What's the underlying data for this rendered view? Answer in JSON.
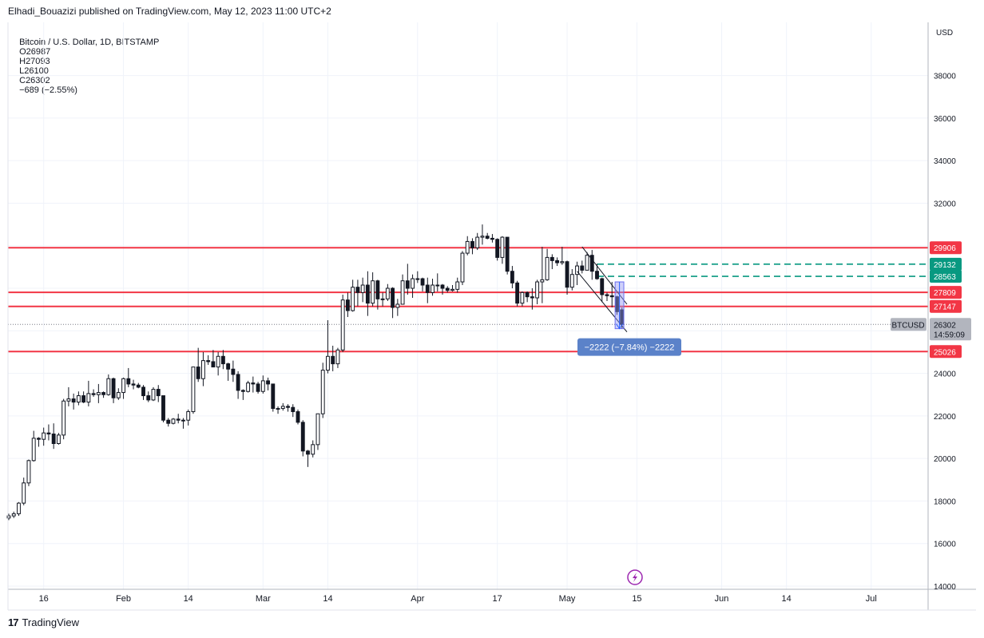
{
  "header": {
    "author": "Elhadi_Bouazizi",
    "published": "published on TradingView.com, May 12, 2023 11:00 UTC+2"
  },
  "symbol": {
    "name": "Bitcoin / U.S. Dollar, 1D, BITSTAMP",
    "open": "O26987",
    "high": "H27093",
    "low": "L26100",
    "close": "C26302",
    "change": "−689 (−2.55%)"
  },
  "footer": {
    "brand": "TradingView"
  },
  "colors": {
    "resistance": "#f23645",
    "target_dashed": "#089981",
    "measure_fill": "#9598f5",
    "measure_badge": "#5b82c9",
    "grid": "#f0f3fa",
    "candle": "#131722"
  },
  "chart_data": {
    "type": "candlestick",
    "currency_label": "USD",
    "y_ticks": [
      14000,
      16000,
      18000,
      20000,
      22000,
      24000,
      26000,
      28000,
      30000,
      32000,
      34000,
      36000,
      38000
    ],
    "y_tick_labels": [
      "14000",
      "16000",
      "18000",
      "20000",
      "22000",
      "24000",
      "",
      "",
      "",
      "32000",
      "34000",
      "36000",
      "38000"
    ],
    "ylim": [
      13850,
      40500
    ],
    "x_axis": {
      "start": "2023-01-09",
      "end": "2023-07-06"
    },
    "x_ticks": [
      {
        "date": "2023-01-16",
        "label": "16"
      },
      {
        "date": "2023-02-01",
        "label": "Feb"
      },
      {
        "date": "2023-02-14",
        "label": "14"
      },
      {
        "date": "2023-03-01",
        "label": "Mar"
      },
      {
        "date": "2023-03-14",
        "label": "14"
      },
      {
        "date": "2023-04-01",
        "label": "Apr"
      },
      {
        "date": "2023-04-17",
        "label": "17"
      },
      {
        "date": "2023-05-01",
        "label": "May"
      },
      {
        "date": "2023-05-15",
        "label": "15"
      },
      {
        "date": "2023-06-01",
        "label": "Jun"
      },
      {
        "date": "2023-06-14",
        "label": "14"
      },
      {
        "date": "2023-07-01",
        "label": "Jul"
      }
    ],
    "candles": [
      {
        "date": "2023-01-09",
        "o": 17200,
        "h": 17400,
        "l": 17100,
        "c": 17300
      },
      {
        "date": "2023-01-10",
        "o": 17300,
        "h": 17500,
        "l": 17200,
        "c": 17400
      },
      {
        "date": "2023-01-11",
        "o": 17400,
        "h": 17950,
        "l": 17300,
        "c": 17900
      },
      {
        "date": "2023-01-12",
        "o": 17900,
        "h": 19100,
        "l": 17800,
        "c": 18850
      },
      {
        "date": "2023-01-13",
        "o": 18850,
        "h": 19950,
        "l": 18700,
        "c": 19900
      },
      {
        "date": "2023-01-14",
        "o": 19900,
        "h": 21300,
        "l": 19850,
        "c": 20950
      },
      {
        "date": "2023-01-15",
        "o": 20950,
        "h": 21000,
        "l": 20550,
        "c": 20900
      },
      {
        "date": "2023-01-16",
        "o": 20900,
        "h": 21450,
        "l": 20600,
        "c": 21200
      },
      {
        "date": "2023-01-17",
        "o": 21200,
        "h": 21600,
        "l": 20850,
        "c": 21150
      },
      {
        "date": "2023-01-18",
        "o": 21150,
        "h": 21650,
        "l": 20450,
        "c": 20700
      },
      {
        "date": "2023-01-19",
        "o": 20700,
        "h": 21200,
        "l": 20650,
        "c": 21100
      },
      {
        "date": "2023-01-20",
        "o": 21100,
        "h": 22800,
        "l": 20900,
        "c": 22700
      },
      {
        "date": "2023-01-21",
        "o": 22700,
        "h": 23350,
        "l": 22450,
        "c": 22800
      },
      {
        "date": "2023-01-22",
        "o": 22800,
        "h": 23050,
        "l": 22300,
        "c": 22650
      },
      {
        "date": "2023-01-23",
        "o": 22650,
        "h": 23150,
        "l": 22500,
        "c": 22950
      },
      {
        "date": "2023-01-24",
        "o": 22950,
        "h": 23150,
        "l": 22600,
        "c": 22650
      },
      {
        "date": "2023-01-25",
        "o": 22650,
        "h": 23650,
        "l": 22450,
        "c": 23050
      },
      {
        "date": "2023-01-26",
        "o": 23050,
        "h": 23250,
        "l": 22900,
        "c": 23000
      },
      {
        "date": "2023-01-27",
        "o": 23000,
        "h": 23500,
        "l": 22600,
        "c": 23100
      },
      {
        "date": "2023-01-28",
        "o": 23100,
        "h": 23150,
        "l": 22850,
        "c": 23000
      },
      {
        "date": "2023-01-29",
        "o": 23000,
        "h": 23950,
        "l": 22950,
        "c": 23750
      },
      {
        "date": "2023-01-30",
        "o": 23750,
        "h": 23800,
        "l": 22600,
        "c": 22850
      },
      {
        "date": "2023-01-31",
        "o": 22850,
        "h": 23300,
        "l": 22750,
        "c": 23100
      },
      {
        "date": "2023-02-01",
        "o": 23100,
        "h": 23800,
        "l": 22800,
        "c": 23750
      },
      {
        "date": "2023-02-02",
        "o": 23750,
        "h": 24250,
        "l": 23350,
        "c": 23500
      },
      {
        "date": "2023-02-03",
        "o": 23500,
        "h": 23700,
        "l": 23250,
        "c": 23450
      },
      {
        "date": "2023-02-04",
        "o": 23450,
        "h": 23550,
        "l": 23300,
        "c": 23350
      },
      {
        "date": "2023-02-05",
        "o": 23350,
        "h": 23450,
        "l": 22750,
        "c": 22950
      },
      {
        "date": "2023-02-06",
        "o": 22950,
        "h": 23150,
        "l": 22650,
        "c": 22750
      },
      {
        "date": "2023-02-07",
        "o": 22750,
        "h": 23350,
        "l": 22700,
        "c": 23250
      },
      {
        "date": "2023-02-08",
        "o": 23250,
        "h": 23450,
        "l": 22650,
        "c": 22950
      },
      {
        "date": "2023-02-09",
        "o": 22950,
        "h": 22950,
        "l": 21700,
        "c": 21800
      },
      {
        "date": "2023-02-10",
        "o": 21800,
        "h": 21900,
        "l": 21500,
        "c": 21650
      },
      {
        "date": "2023-02-11",
        "o": 21650,
        "h": 21900,
        "l": 21600,
        "c": 21850
      },
      {
        "date": "2023-02-12",
        "o": 21850,
        "h": 22100,
        "l": 21650,
        "c": 21800
      },
      {
        "date": "2023-02-13",
        "o": 21800,
        "h": 21900,
        "l": 21400,
        "c": 21800
      },
      {
        "date": "2023-02-14",
        "o": 21800,
        "h": 22300,
        "l": 21550,
        "c": 22200
      },
      {
        "date": "2023-02-15",
        "o": 22200,
        "h": 24300,
        "l": 22100,
        "c": 24300
      },
      {
        "date": "2023-02-16",
        "o": 24300,
        "h": 25200,
        "l": 23600,
        "c": 23750
      },
      {
        "date": "2023-02-17",
        "o": 23750,
        "h": 25000,
        "l": 23400,
        "c": 24600
      },
      {
        "date": "2023-02-18",
        "o": 24600,
        "h": 24850,
        "l": 24400,
        "c": 24550
      },
      {
        "date": "2023-02-19",
        "o": 24550,
        "h": 25100,
        "l": 24300,
        "c": 24300
      },
      {
        "date": "2023-02-20",
        "o": 24300,
        "h": 25000,
        "l": 23900,
        "c": 24800
      },
      {
        "date": "2023-02-21",
        "o": 24800,
        "h": 25100,
        "l": 24200,
        "c": 24450
      },
      {
        "date": "2023-02-22",
        "o": 24450,
        "h": 24500,
        "l": 23650,
        "c": 24200
      },
      {
        "date": "2023-02-23",
        "o": 24200,
        "h": 24600,
        "l": 23600,
        "c": 23950
      },
      {
        "date": "2023-02-24",
        "o": 23950,
        "h": 24100,
        "l": 22800,
        "c": 23200
      },
      {
        "date": "2023-02-25",
        "o": 23200,
        "h": 23250,
        "l": 22750,
        "c": 23150
      },
      {
        "date": "2023-02-26",
        "o": 23150,
        "h": 23650,
        "l": 23100,
        "c": 23550
      },
      {
        "date": "2023-02-27",
        "o": 23550,
        "h": 23850,
        "l": 23100,
        "c": 23500
      },
      {
        "date": "2023-02-28",
        "o": 23500,
        "h": 23600,
        "l": 23050,
        "c": 23150
      },
      {
        "date": "2023-03-01",
        "o": 23150,
        "h": 23900,
        "l": 23050,
        "c": 23650
      },
      {
        "date": "2023-03-02",
        "o": 23650,
        "h": 23800,
        "l": 23200,
        "c": 23500
      },
      {
        "date": "2023-03-03",
        "o": 23500,
        "h": 23500,
        "l": 22200,
        "c": 22350
      },
      {
        "date": "2023-03-04",
        "o": 22350,
        "h": 22450,
        "l": 22100,
        "c": 22350
      },
      {
        "date": "2023-03-05",
        "o": 22350,
        "h": 22600,
        "l": 22250,
        "c": 22450
      },
      {
        "date": "2023-03-06",
        "o": 22450,
        "h": 22550,
        "l": 22200,
        "c": 22400
      },
      {
        "date": "2023-03-07",
        "o": 22400,
        "h": 22550,
        "l": 21950,
        "c": 22200
      },
      {
        "date": "2023-03-08",
        "o": 22200,
        "h": 22300,
        "l": 21600,
        "c": 21700
      },
      {
        "date": "2023-03-09",
        "o": 21700,
        "h": 21800,
        "l": 20100,
        "c": 20350
      },
      {
        "date": "2023-03-10",
        "o": 20350,
        "h": 20400,
        "l": 19600,
        "c": 20200
      },
      {
        "date": "2023-03-11",
        "o": 20200,
        "h": 20850,
        "l": 20050,
        "c": 20650
      },
      {
        "date": "2023-03-12",
        "o": 20650,
        "h": 22100,
        "l": 20400,
        "c": 22100
      },
      {
        "date": "2023-03-13",
        "o": 22100,
        "h": 24500,
        "l": 21900,
        "c": 24150
      },
      {
        "date": "2023-03-14",
        "o": 24150,
        "h": 26500,
        "l": 24000,
        "c": 24800
      },
      {
        "date": "2023-03-15",
        "o": 24800,
        "h": 25300,
        "l": 24100,
        "c": 24450
      },
      {
        "date": "2023-03-16",
        "o": 24450,
        "h": 25200,
        "l": 24250,
        "c": 25100
      },
      {
        "date": "2023-03-17",
        "o": 25100,
        "h": 27700,
        "l": 25000,
        "c": 27450
      },
      {
        "date": "2023-03-18",
        "o": 27450,
        "h": 27800,
        "l": 26650,
        "c": 26950
      },
      {
        "date": "2023-03-19",
        "o": 26950,
        "h": 28400,
        "l": 26900,
        "c": 28050
      },
      {
        "date": "2023-03-20",
        "o": 28050,
        "h": 28400,
        "l": 27150,
        "c": 27800
      },
      {
        "date": "2023-03-21",
        "o": 27800,
        "h": 28500,
        "l": 27350,
        "c": 28150
      },
      {
        "date": "2023-03-22",
        "o": 28150,
        "h": 28800,
        "l": 26700,
        "c": 27300
      },
      {
        "date": "2023-03-23",
        "o": 27300,
        "h": 28750,
        "l": 27150,
        "c": 28350
      },
      {
        "date": "2023-03-24",
        "o": 28350,
        "h": 28400,
        "l": 27000,
        "c": 27500
      },
      {
        "date": "2023-03-25",
        "o": 27500,
        "h": 27800,
        "l": 27150,
        "c": 27500
      },
      {
        "date": "2023-03-26",
        "o": 27500,
        "h": 28200,
        "l": 27400,
        "c": 28000
      },
      {
        "date": "2023-03-27",
        "o": 28000,
        "h": 28050,
        "l": 26600,
        "c": 27100
      },
      {
        "date": "2023-03-28",
        "o": 27100,
        "h": 27500,
        "l": 26700,
        "c": 27250
      },
      {
        "date": "2023-03-29",
        "o": 27250,
        "h": 28650,
        "l": 27250,
        "c": 28350
      },
      {
        "date": "2023-03-30",
        "o": 28350,
        "h": 29150,
        "l": 27700,
        "c": 28000
      },
      {
        "date": "2023-03-31",
        "o": 28000,
        "h": 28650,
        "l": 27550,
        "c": 28450
      },
      {
        "date": "2023-04-01",
        "o": 28450,
        "h": 28800,
        "l": 28250,
        "c": 28450
      },
      {
        "date": "2023-04-02",
        "o": 28450,
        "h": 28500,
        "l": 27850,
        "c": 28150
      },
      {
        "date": "2023-04-03",
        "o": 28150,
        "h": 28500,
        "l": 27300,
        "c": 27800
      },
      {
        "date": "2023-04-04",
        "o": 27800,
        "h": 28450,
        "l": 27650,
        "c": 28150
      },
      {
        "date": "2023-04-05",
        "o": 28150,
        "h": 28700,
        "l": 27850,
        "c": 28150
      },
      {
        "date": "2023-04-06",
        "o": 28150,
        "h": 28200,
        "l": 27700,
        "c": 28000
      },
      {
        "date": "2023-04-07",
        "o": 28000,
        "h": 28100,
        "l": 27800,
        "c": 27900
      },
      {
        "date": "2023-04-08",
        "o": 27900,
        "h": 28150,
        "l": 27850,
        "c": 27950
      },
      {
        "date": "2023-04-09",
        "o": 27950,
        "h": 28500,
        "l": 27800,
        "c": 28300
      },
      {
        "date": "2023-04-10",
        "o": 28300,
        "h": 29750,
        "l": 28150,
        "c": 29650
      },
      {
        "date": "2023-04-11",
        "o": 29650,
        "h": 30450,
        "l": 29550,
        "c": 30200
      },
      {
        "date": "2023-04-12",
        "o": 30200,
        "h": 30350,
        "l": 29600,
        "c": 29900
      },
      {
        "date": "2023-04-13",
        "o": 29900,
        "h": 30600,
        "l": 29800,
        "c": 30400
      },
      {
        "date": "2023-04-14",
        "o": 30400,
        "h": 31000,
        "l": 30050,
        "c": 30450
      },
      {
        "date": "2023-04-15",
        "o": 30450,
        "h": 30600,
        "l": 30300,
        "c": 30350
      },
      {
        "date": "2023-04-16",
        "o": 30350,
        "h": 30550,
        "l": 30150,
        "c": 30300
      },
      {
        "date": "2023-04-17",
        "o": 30300,
        "h": 30350,
        "l": 29300,
        "c": 29450
      },
      {
        "date": "2023-04-18",
        "o": 29450,
        "h": 30450,
        "l": 29150,
        "c": 30400
      },
      {
        "date": "2023-04-19",
        "o": 30400,
        "h": 30400,
        "l": 28650,
        "c": 28800
      },
      {
        "date": "2023-04-20",
        "o": 28800,
        "h": 29050,
        "l": 28000,
        "c": 28250
      },
      {
        "date": "2023-04-21",
        "o": 28250,
        "h": 28350,
        "l": 27150,
        "c": 27300
      },
      {
        "date": "2023-04-22",
        "o": 27300,
        "h": 27850,
        "l": 27150,
        "c": 27800
      },
      {
        "date": "2023-04-23",
        "o": 27800,
        "h": 27850,
        "l": 27350,
        "c": 27600
      },
      {
        "date": "2023-04-24",
        "o": 27600,
        "h": 28000,
        "l": 27000,
        "c": 27550
      },
      {
        "date": "2023-04-25",
        "o": 27550,
        "h": 28400,
        "l": 27250,
        "c": 28300
      },
      {
        "date": "2023-04-26",
        "o": 28300,
        "h": 29950,
        "l": 27300,
        "c": 28400
      },
      {
        "date": "2023-04-27",
        "o": 28400,
        "h": 29850,
        "l": 28350,
        "c": 29450
      },
      {
        "date": "2023-04-28",
        "o": 29450,
        "h": 29600,
        "l": 28900,
        "c": 29300
      },
      {
        "date": "2023-04-29",
        "o": 29300,
        "h": 29450,
        "l": 29050,
        "c": 29200
      },
      {
        "date": "2023-04-30",
        "o": 29200,
        "h": 29950,
        "l": 29100,
        "c": 29250
      },
      {
        "date": "2023-05-01",
        "o": 29250,
        "h": 29300,
        "l": 27700,
        "c": 28050
      },
      {
        "date": "2023-05-02",
        "o": 28050,
        "h": 28900,
        "l": 27900,
        "c": 28650
      },
      {
        "date": "2023-05-03",
        "o": 28650,
        "h": 29250,
        "l": 28150,
        "c": 29050
      },
      {
        "date": "2023-05-04",
        "o": 29050,
        "h": 29300,
        "l": 28700,
        "c": 28850
      },
      {
        "date": "2023-05-05",
        "o": 28850,
        "h": 29700,
        "l": 28850,
        "c": 29550
      },
      {
        "date": "2023-05-06",
        "o": 29550,
        "h": 29800,
        "l": 28400,
        "c": 28800
      },
      {
        "date": "2023-05-07",
        "o": 28800,
        "h": 29150,
        "l": 28400,
        "c": 28450
      },
      {
        "date": "2023-05-08",
        "o": 28450,
        "h": 28500,
        "l": 27350,
        "c": 27700
      },
      {
        "date": "2023-05-09",
        "o": 27700,
        "h": 27800,
        "l": 27400,
        "c": 27650
      },
      {
        "date": "2023-05-10",
        "o": 27650,
        "h": 28300,
        "l": 27100,
        "c": 27600
      },
      {
        "date": "2023-05-11",
        "o": 27600,
        "h": 27650,
        "l": 26750,
        "c": 26900
      },
      {
        "date": "2023-05-12",
        "o": 26987,
        "h": 27093,
        "l": 26100,
        "c": 26302
      }
    ],
    "horizontal_levels": [
      29906,
      27809,
      27147,
      25026
    ],
    "target_levels": [
      29132,
      28563
    ],
    "channel": {
      "upper": [
        {
          "date": "2023-05-04",
          "price": 29950
        },
        {
          "date": "2023-05-13",
          "price": 27250
        }
      ],
      "lower": [
        {
          "date": "2023-05-03",
          "price": 28800
        },
        {
          "date": "2023-05-13",
          "price": 25950
        }
      ]
    },
    "measure": {
      "from": {
        "date": "2023-05-11",
        "price": 28300
      },
      "to": {
        "date": "2023-05-12",
        "price": 26100
      },
      "label": "−2222 (−7.84%) −2222"
    },
    "last_price": {
      "ticker": "BTCUSD",
      "price": "26302",
      "countdown": "14:59:09",
      "value": 26302
    }
  }
}
